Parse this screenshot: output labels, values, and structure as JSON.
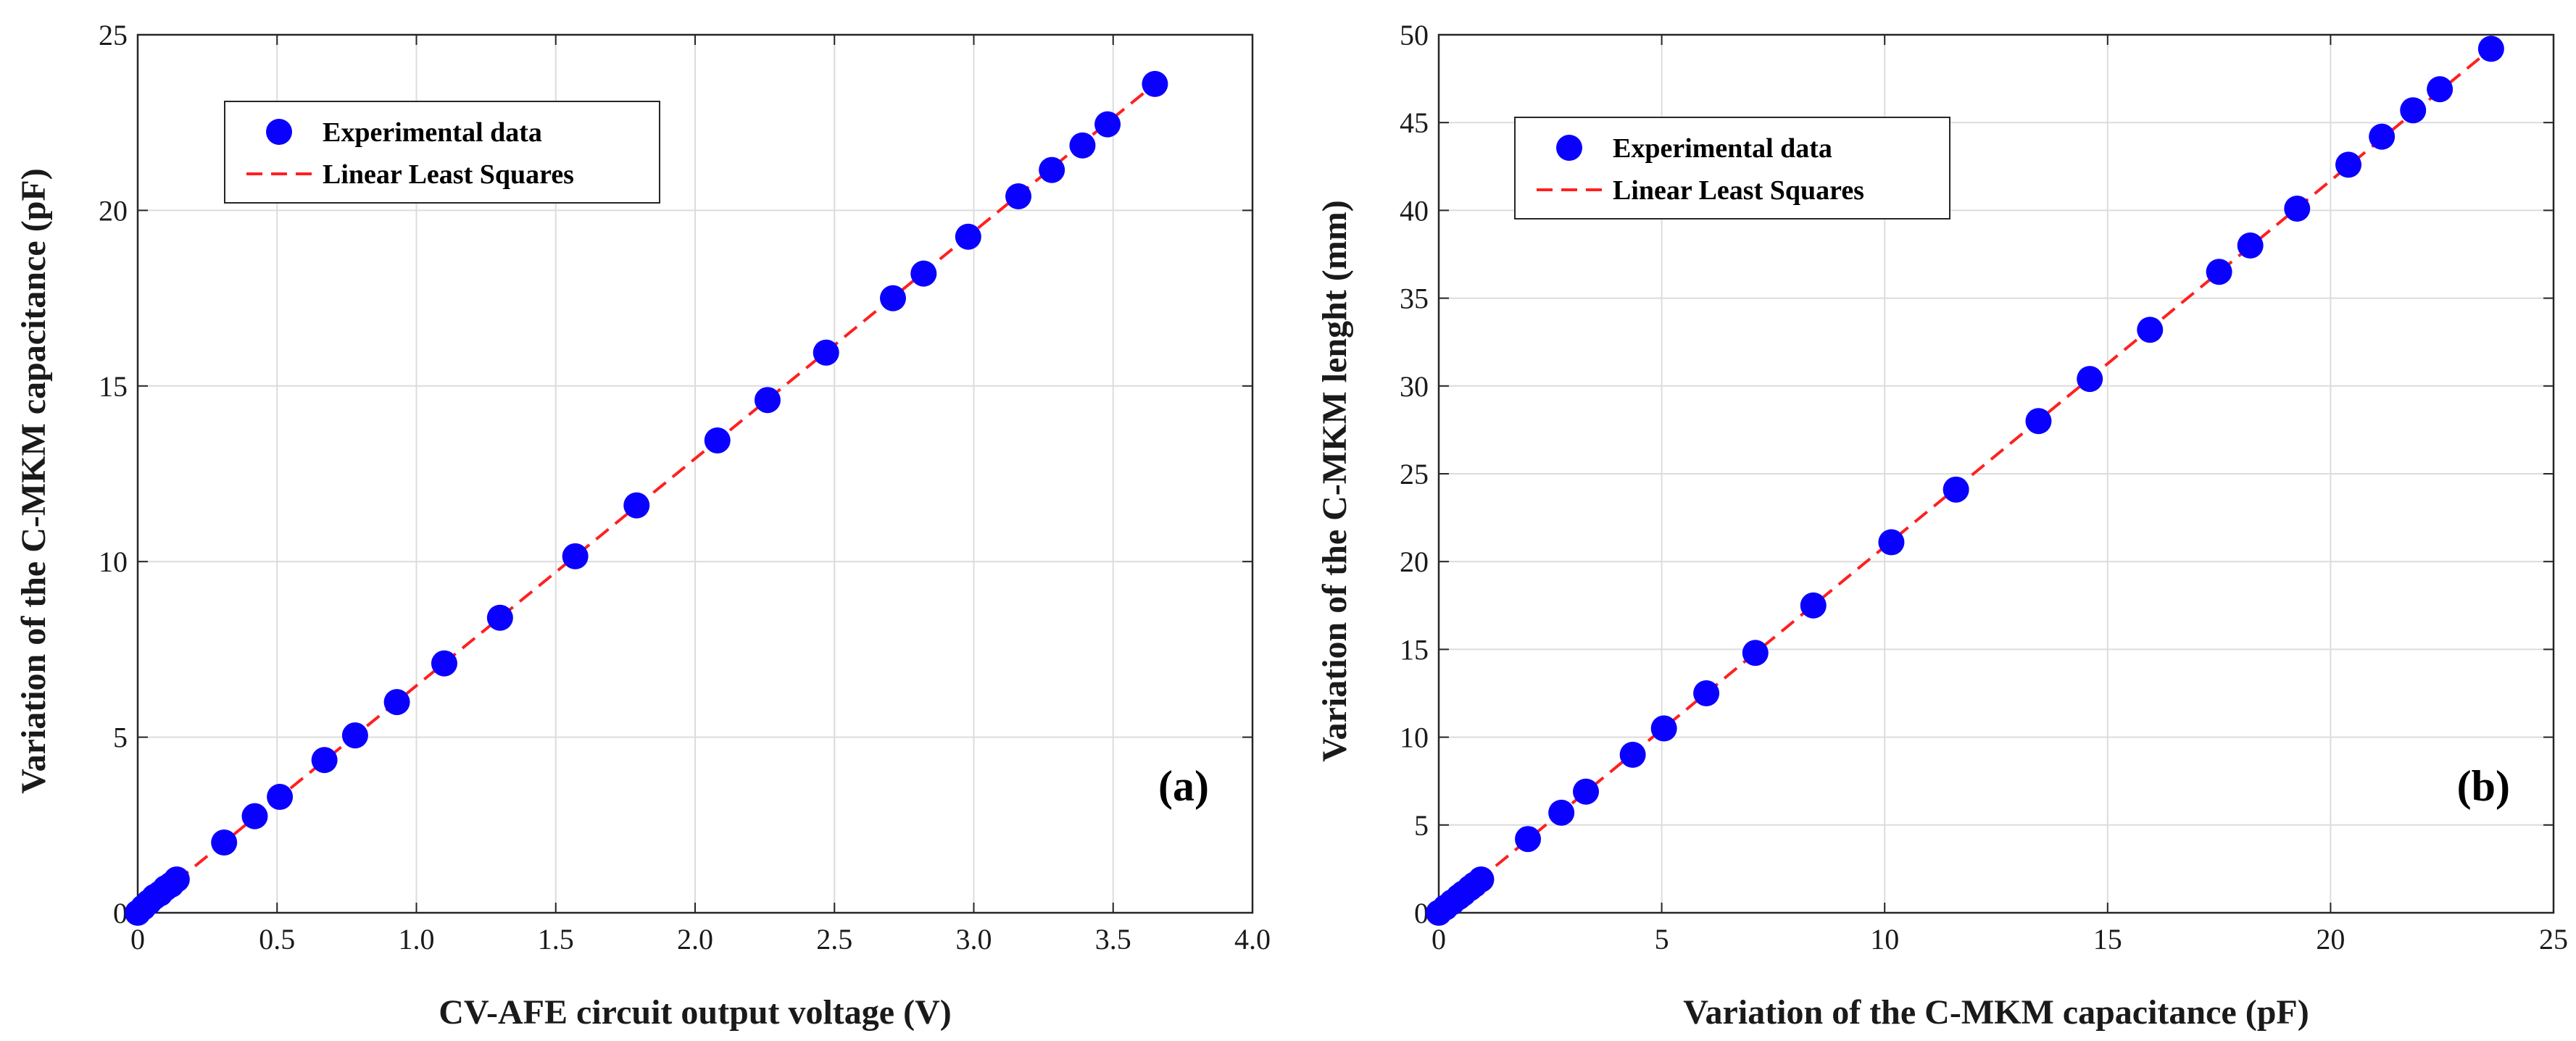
{
  "chart_data": [
    {
      "type": "scatter",
      "panel_label": "(a)",
      "xlabel": "CV-AFE circuit output voltage (V)",
      "ylabel": "Variation of the C-MKM capacitance (pF)",
      "xlim": [
        0,
        4.0
      ],
      "ylim": [
        0,
        25
      ],
      "xticks": [
        "0",
        "0.5",
        "1.0",
        "1.5",
        "2.0",
        "2.5",
        "3.0",
        "3.5",
        "4.0"
      ],
      "yticks": [
        "0",
        "5",
        "10",
        "15",
        "20",
        "25"
      ],
      "grid": true,
      "legend_position": "upper-left",
      "series": [
        {
          "name": "Experimental data",
          "style": "marker",
          "color": "#0a00ff",
          "x": [
            0.0,
            0.02,
            0.04,
            0.06,
            0.08,
            0.1,
            0.12,
            0.14,
            0.31,
            0.42,
            0.51,
            0.67,
            0.78,
            0.93,
            1.1,
            1.3,
            1.57,
            1.79,
            2.08,
            2.26,
            2.47,
            2.71,
            2.82,
            2.98,
            3.16,
            3.28,
            3.39,
            3.48,
            3.65
          ],
          "y": [
            0.0,
            0.15,
            0.3,
            0.45,
            0.55,
            0.7,
            0.8,
            0.95,
            2.0,
            2.75,
            3.3,
            4.35,
            5.05,
            6.0,
            7.1,
            8.4,
            10.15,
            11.6,
            13.45,
            14.6,
            15.95,
            17.5,
            18.2,
            19.25,
            20.4,
            21.15,
            21.85,
            22.45,
            23.6
          ]
        },
        {
          "name": "Linear Least Squares",
          "style": "dashed-line",
          "color": "#ff2020",
          "x": [
            0,
            3.65
          ],
          "y": [
            0,
            23.6
          ]
        }
      ]
    },
    {
      "type": "scatter",
      "panel_label": "(b)",
      "xlabel": "Variation of the C-MKM capacitance (pF)",
      "ylabel": "Variation of the C-MKM lenght (mm)",
      "xlim": [
        0,
        25
      ],
      "ylim": [
        0,
        50
      ],
      "xticks": [
        "0",
        "5",
        "10",
        "15",
        "20",
        "25"
      ],
      "yticks": [
        "0",
        "5",
        "10",
        "15",
        "20",
        "25",
        "30",
        "35",
        "40",
        "45",
        "50"
      ],
      "grid": true,
      "legend_position": "upper-left",
      "series": [
        {
          "name": "Experimental data",
          "style": "marker",
          "color": "#0a00ff",
          "x": [
            0.0,
            0.15,
            0.3,
            0.45,
            0.55,
            0.7,
            0.8,
            0.95,
            2.0,
            2.75,
            3.3,
            4.35,
            5.05,
            6.0,
            7.1,
            8.4,
            10.15,
            11.6,
            13.45,
            14.6,
            15.95,
            17.5,
            18.2,
            19.25,
            20.4,
            21.15,
            21.85,
            22.45,
            23.6
          ],
          "y": [
            0.0,
            0.3,
            0.6,
            0.9,
            1.1,
            1.4,
            1.6,
            1.9,
            4.2,
            5.7,
            6.9,
            9.0,
            10.5,
            12.5,
            14.8,
            17.5,
            21.1,
            24.1,
            28.0,
            30.4,
            33.2,
            36.5,
            38.0,
            40.1,
            42.6,
            44.2,
            45.7,
            46.9,
            49.2
          ]
        },
        {
          "name": "Linear Least Squares",
          "style": "dashed-line",
          "color": "#ff2020",
          "x": [
            0,
            23.6
          ],
          "y": [
            0,
            49.2
          ]
        }
      ]
    }
  ]
}
